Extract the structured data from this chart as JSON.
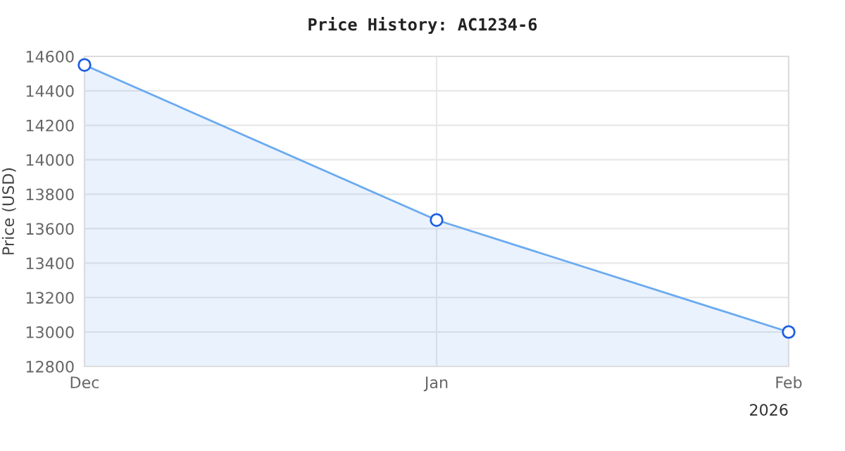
{
  "chart_data": {
    "type": "area",
    "title": "Price History: AC1234-6",
    "ylabel": "Price (USD)",
    "x": [
      "2025-12-01",
      "2026-01-01",
      "2026-02-01"
    ],
    "series": [
      {
        "color": "#6aaaf0",
        "values": [
          14550,
          13650,
          13000
        ]
      }
    ],
    "xlim": [
      "2025-12-01",
      "2026-02-01"
    ],
    "xticks": [
      {
        "value": "2025-12-01",
        "label": "Dec"
      },
      {
        "value": "2026-01-01",
        "label": "Jan"
      },
      {
        "value": "2026-02-01",
        "label": "Feb"
      }
    ],
    "ylim": [
      12800,
      14600
    ],
    "yticks": [
      12800,
      13000,
      13200,
      13400,
      13600,
      13800,
      14000,
      14200,
      14400,
      14600
    ],
    "annotations": [
      "2026"
    ],
    "grid": true,
    "marker": "circle",
    "line_style": "solid",
    "legend": false
  }
}
